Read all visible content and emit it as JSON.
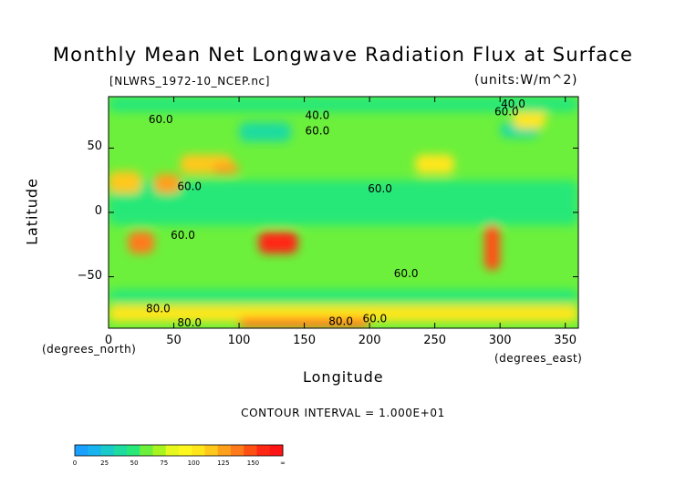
{
  "chart_data": {
    "type": "heatmap",
    "title": "Monthly Mean Net Longwave Radiation Flux at Surface",
    "subtitle": "[NLWRS_1972-10_NCEP.nc]",
    "units_label": "(units:W/m^2)",
    "xlabel": "Longitude",
    "ylabel": "Latitude",
    "x_units_caption": "(degrees_east)",
    "y_units_caption": "(degrees_north)",
    "xlim": [
      0,
      360
    ],
    "ylim": [
      -90,
      90
    ],
    "x_ticks": [
      0,
      50,
      100,
      150,
      200,
      250,
      300,
      350
    ],
    "y_ticks": [
      50,
      0,
      -50
    ],
    "y_tick_labels": [
      "50",
      "0",
      "−50"
    ],
    "contour_interval_label": "CONTOUR INTERVAL = 1.000E+01",
    "contour_labels": [
      {
        "text": "60.0",
        "lon": 40,
        "lat": 72
      },
      {
        "text": "40.0",
        "lon": 160,
        "lat": 75
      },
      {
        "text": "60.0",
        "lon": 160,
        "lat": 63
      },
      {
        "text": "40.0",
        "lon": 310,
        "lat": 84
      },
      {
        "text": "60.0",
        "lon": 305,
        "lat": 78
      },
      {
        "text": "60.0",
        "lon": 62,
        "lat": 20
      },
      {
        "text": "60.0",
        "lon": 208,
        "lat": 18
      },
      {
        "text": "60.0",
        "lon": 57,
        "lat": -18
      },
      {
        "text": "60.0",
        "lon": 228,
        "lat": -48
      },
      {
        "text": "80.0",
        "lon": 38,
        "lat": -75
      },
      {
        "text": "80.0",
        "lon": 62,
        "lat": -86
      },
      {
        "text": "80.0",
        "lon": 178,
        "lat": -85
      },
      {
        "text": "60.0",
        "lon": 204,
        "lat": -83
      }
    ],
    "colorbar": {
      "tick_labels": [
        "0",
        "25",
        "50",
        "75",
        "100",
        "125",
        "150",
        "∞"
      ],
      "bins": [
        {
          "from": 0,
          "to": 10,
          "color": "#1aa0ff"
        },
        {
          "from": 10,
          "to": 20,
          "color": "#18b4f0"
        },
        {
          "from": 20,
          "to": 30,
          "color": "#1ac9c9"
        },
        {
          "from": 30,
          "to": 40,
          "color": "#1edca0"
        },
        {
          "from": 40,
          "to": 50,
          "color": "#28e878"
        },
        {
          "from": 50,
          "to": 60,
          "color": "#6cf03c"
        },
        {
          "from": 60,
          "to": 70,
          "color": "#a8f41e"
        },
        {
          "from": 70,
          "to": 80,
          "color": "#e6f81e"
        },
        {
          "from": 80,
          "to": 90,
          "color": "#fff81e"
        },
        {
          "from": 90,
          "to": 100,
          "color": "#ffe61a"
        },
        {
          "from": 100,
          "to": 110,
          "color": "#ffc81a"
        },
        {
          "from": 110,
          "to": 120,
          "color": "#ffa01a"
        },
        {
          "from": 120,
          "to": 130,
          "color": "#ff7a1a"
        },
        {
          "from": 130,
          "to": 140,
          "color": "#ff5014"
        },
        {
          "from": 140,
          "to": 150,
          "color": "#ff2814"
        },
        {
          "from": 150,
          "to": 1000,
          "color": "#ff1414"
        }
      ]
    },
    "background_value": 55,
    "regions": [
      {
        "name": "tropical-band",
        "lon": [
          0,
          360
        ],
        "lat": [
          -10,
          25
        ],
        "value": 40
      },
      {
        "name": "north-america-west",
        "lon": [
          235,
          265
        ],
        "lat": [
          30,
          45
        ],
        "value": 95
      },
      {
        "name": "arctic-canada",
        "lon": [
          300,
          330
        ],
        "lat": [
          58,
          70
        ],
        "value": 30
      },
      {
        "name": "greenland",
        "lon": [
          310,
          335
        ],
        "lat": [
          65,
          85
        ],
        "value": 95
      },
      {
        "name": "sahara",
        "lon": [
          0,
          25
        ],
        "lat": [
          15,
          32
        ],
        "value": 105
      },
      {
        "name": "arabia",
        "lon": [
          35,
          55
        ],
        "lat": [
          15,
          30
        ],
        "value": 110
      },
      {
        "name": "central-asia",
        "lon": [
          55,
          95
        ],
        "lat": [
          30,
          45
        ],
        "value": 100
      },
      {
        "name": "tibet",
        "lon": [
          80,
          100
        ],
        "lat": [
          30,
          38
        ],
        "value": 115
      },
      {
        "name": "siberia",
        "lon": [
          100,
          140
        ],
        "lat": [
          55,
          70
        ],
        "value": 35
      },
      {
        "name": "southern-africa",
        "lon": [
          15,
          35
        ],
        "lat": [
          -32,
          -15
        ],
        "value": 125
      },
      {
        "name": "australia",
        "lon": [
          115,
          145
        ],
        "lat": [
          -32,
          -15
        ],
        "value": 145
      },
      {
        "name": "andes",
        "lon": [
          288,
          300
        ],
        "lat": [
          -45,
          -10
        ],
        "value": 130
      },
      {
        "name": "southern-ocean",
        "lon": [
          0,
          360
        ],
        "lat": [
          -70,
          -60
        ],
        "value": 40
      },
      {
        "name": "antarctic-coast",
        "lon": [
          0,
          360
        ],
        "lat": [
          -85,
          -72
        ],
        "value": 95
      },
      {
        "name": "antarctic-interior",
        "lon": [
          100,
          200
        ],
        "lat": [
          -90,
          -82
        ],
        "value": 120
      },
      {
        "name": "arctic-ocean",
        "lon": [
          0,
          360
        ],
        "lat": [
          78,
          90
        ],
        "value": 40
      }
    ]
  }
}
